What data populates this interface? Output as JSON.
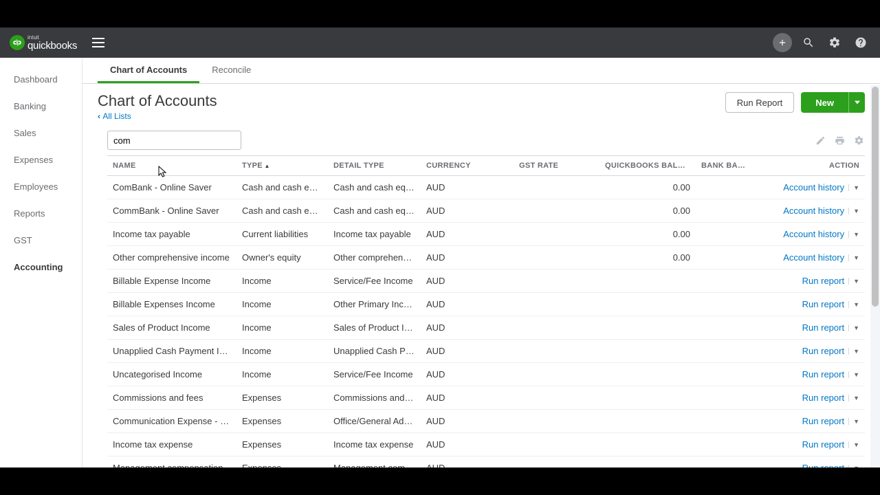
{
  "brand": {
    "small": "intuit",
    "main": "quickbooks"
  },
  "sidebar": {
    "items": [
      {
        "label": "Dashboard"
      },
      {
        "label": "Banking"
      },
      {
        "label": "Sales"
      },
      {
        "label": "Expenses"
      },
      {
        "label": "Employees"
      },
      {
        "label": "Reports"
      },
      {
        "label": "GST"
      },
      {
        "label": "Accounting"
      }
    ],
    "active_index": 7
  },
  "tabs": {
    "items": [
      {
        "label": "Chart of Accounts"
      },
      {
        "label": "Reconcile"
      }
    ],
    "active_index": 0
  },
  "page": {
    "title": "Chart of Accounts",
    "breadcrumb": "All Lists",
    "run_report": "Run Report",
    "new_button": "New"
  },
  "search": {
    "value": "com"
  },
  "columns": {
    "name": "NAME",
    "type": "TYPE",
    "detail": "DETAIL TYPE",
    "currency": "CURRENCY",
    "gst": "GST RATE",
    "qb_balance": "QUICKBOOKS BALANCE",
    "bank_balance": "BANK BALANCE",
    "action": "ACTION"
  },
  "action_labels": {
    "history": "Account history",
    "run": "Run report"
  },
  "rows": [
    {
      "name": "ComBank - Online Saver",
      "type": "Cash and cash equivalents",
      "detail": "Cash and cash equivalents",
      "currency": "AUD",
      "gst": "",
      "qb": "0.00",
      "bank": "",
      "action": "history"
    },
    {
      "name": "CommBank - Online Saver",
      "type": "Cash and cash equivalents",
      "detail": "Cash and cash equivalents",
      "currency": "AUD",
      "gst": "",
      "qb": "0.00",
      "bank": "",
      "action": "history"
    },
    {
      "name": "Income tax payable",
      "type": "Current liabilities",
      "detail": "Income tax payable",
      "currency": "AUD",
      "gst": "",
      "qb": "0.00",
      "bank": "",
      "action": "history"
    },
    {
      "name": "Other comprehensive income",
      "type": "Owner's equity",
      "detail": "Other comprehensive inc...",
      "currency": "AUD",
      "gst": "",
      "qb": "0.00",
      "bank": "",
      "action": "history"
    },
    {
      "name": "Billable Expense Income",
      "type": "Income",
      "detail": "Service/Fee Income",
      "currency": "AUD",
      "gst": "",
      "qb": "",
      "bank": "",
      "action": "run"
    },
    {
      "name": "Billable Expenses Income",
      "type": "Income",
      "detail": "Other Primary Income",
      "currency": "AUD",
      "gst": "",
      "qb": "",
      "bank": "",
      "action": "run"
    },
    {
      "name": "Sales of Product Income",
      "type": "Income",
      "detail": "Sales of Product Income",
      "currency": "AUD",
      "gst": "",
      "qb": "",
      "bank": "",
      "action": "run"
    },
    {
      "name": "Unapplied Cash Payment Income",
      "type": "Income",
      "detail": "Unapplied Cash Payment...",
      "currency": "AUD",
      "gst": "",
      "qb": "",
      "bank": "",
      "action": "run"
    },
    {
      "name": "Uncategorised Income",
      "type": "Income",
      "detail": "Service/Fee Income",
      "currency": "AUD",
      "gst": "",
      "qb": "",
      "bank": "",
      "action": "run"
    },
    {
      "name": "Commissions and fees",
      "type": "Expenses",
      "detail": "Commissions and fees",
      "currency": "AUD",
      "gst": "",
      "qb": "",
      "bank": "",
      "action": "run"
    },
    {
      "name": "Communication Expense - Fixed",
      "type": "Expenses",
      "detail": "Office/General Administr...",
      "currency": "AUD",
      "gst": "",
      "qb": "",
      "bank": "",
      "action": "run"
    },
    {
      "name": "Income tax expense",
      "type": "Expenses",
      "detail": "Income tax expense",
      "currency": "AUD",
      "gst": "",
      "qb": "",
      "bank": "",
      "action": "run"
    },
    {
      "name": "Management compensation",
      "type": "Expenses",
      "detail": "Management compensati...",
      "currency": "AUD",
      "gst": "",
      "qb": "",
      "bank": "",
      "action": "run"
    }
  ]
}
